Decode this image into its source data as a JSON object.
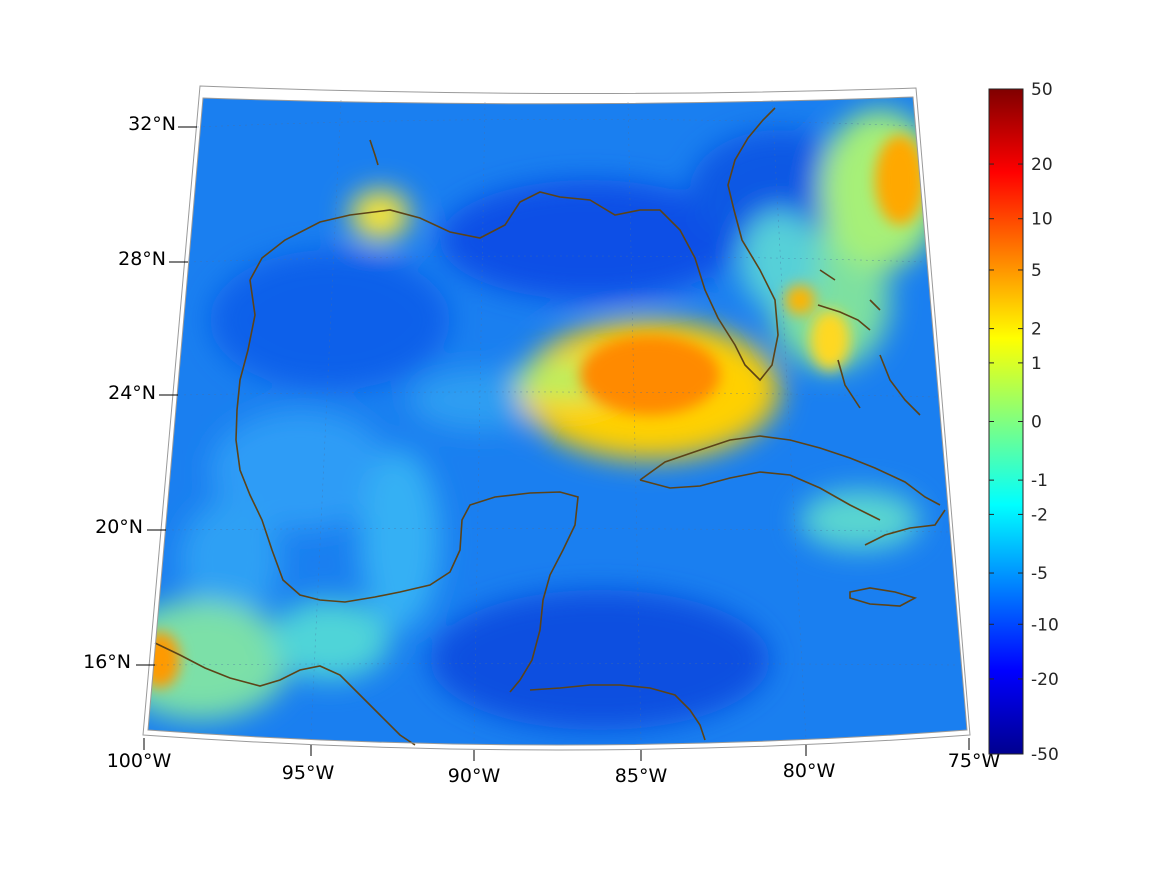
{
  "map": {
    "lon_labels": [
      "100°W",
      "95°W",
      "90°W",
      "85°W",
      "80°W",
      "75°W"
    ],
    "lat_labels": [
      "16°N",
      "20°N",
      "24°N",
      "28°N",
      "32°N"
    ],
    "extent": {
      "lon": [
        -100,
        -75
      ],
      "lat": [
        14,
        33
      ]
    },
    "projection": "conic",
    "coastline_color": "#5c4317",
    "graticule": "dotted",
    "hotspots": [
      {
        "name": "eastern-gulf-warm-anomaly",
        "lon": -84.8,
        "lat": 24.9,
        "value": 7
      },
      {
        "name": "bahamas-warm-anomaly",
        "lon": -77.2,
        "lat": 29.6,
        "value": 5
      },
      {
        "name": "southwest-mexico-warm-anomaly",
        "lon": -99.6,
        "lat": 15.9,
        "value": 3
      }
    ]
  },
  "colorbar": {
    "colormap": "jet",
    "tick_labels": [
      "50",
      "20",
      "10",
      "5",
      "2",
      "1",
      "0",
      "-1",
      "-2",
      "-5",
      "-10",
      "-20",
      "-50"
    ],
    "range": [
      -50,
      50
    ],
    "scale": "symmetric-log"
  }
}
